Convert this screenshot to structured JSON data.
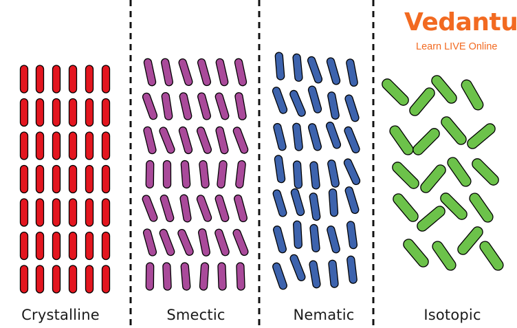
{
  "logo": {
    "word": "Vedantu",
    "tagline": "Learn LIVE Online",
    "color": "#f26a21"
  },
  "panels": [
    {
      "id": "crystalline",
      "label": "Crystalline",
      "fill": "#e3161f",
      "stroke": "#000000",
      "arrangement": "aligned-columns"
    },
    {
      "id": "smectic",
      "label": "Smectic",
      "fill": "#a94a9a",
      "stroke": "#000000",
      "arrangement": "layered-tilted"
    },
    {
      "id": "nematic",
      "label": "Nematic",
      "fill": "#3d63ad",
      "stroke": "#000000",
      "arrangement": "oriented-unlayered"
    },
    {
      "id": "isotopic",
      "label": "Isotopic",
      "fill": "#6cc24a",
      "stroke": "#000000",
      "arrangement": "random"
    }
  ],
  "divider_style": "dashed"
}
